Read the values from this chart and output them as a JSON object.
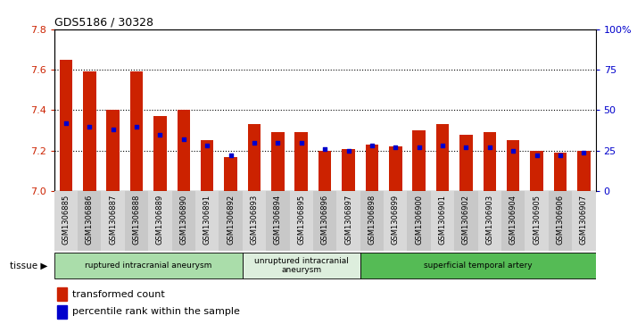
{
  "title": "GDS5186 / 30328",
  "samples": [
    "GSM1306885",
    "GSM1306886",
    "GSM1306887",
    "GSM1306888",
    "GSM1306889",
    "GSM1306890",
    "GSM1306891",
    "GSM1306892",
    "GSM1306893",
    "GSM1306894",
    "GSM1306895",
    "GSM1306896",
    "GSM1306897",
    "GSM1306898",
    "GSM1306899",
    "GSM1306900",
    "GSM1306901",
    "GSM1306902",
    "GSM1306903",
    "GSM1306904",
    "GSM1306905",
    "GSM1306906",
    "GSM1306907"
  ],
  "transformed_count": [
    7.65,
    7.59,
    7.4,
    7.59,
    7.37,
    7.4,
    7.25,
    7.17,
    7.33,
    7.29,
    7.29,
    7.2,
    7.21,
    7.23,
    7.22,
    7.3,
    7.33,
    7.28,
    7.29,
    7.25,
    7.2,
    7.19,
    7.2
  ],
  "percentile_rank": [
    42,
    40,
    38,
    40,
    35,
    32,
    28,
    22,
    30,
    30,
    30,
    26,
    25,
    28,
    27,
    27,
    28,
    27,
    27,
    25,
    22,
    22,
    24
  ],
  "ylim_left": [
    7.0,
    7.8
  ],
  "ylim_right": [
    0,
    100
  ],
  "yticks_left": [
    7.0,
    7.2,
    7.4,
    7.6,
    7.8
  ],
  "yticks_right": [
    0,
    25,
    50,
    75,
    100
  ],
  "ytick_labels_right": [
    "0",
    "25",
    "50",
    "75",
    "100%"
  ],
  "bar_color": "#cc2200",
  "dot_color": "#0000cc",
  "tissue_groups": [
    {
      "label": "ruptured intracranial aneurysm",
      "start": 0,
      "end": 8,
      "color": "#aaddaa"
    },
    {
      "label": "unruptured intracranial\naneurysm",
      "start": 8,
      "end": 13,
      "color": "#ddeedd"
    },
    {
      "label": "superficial temporal artery",
      "start": 13,
      "end": 23,
      "color": "#55bb55"
    }
  ],
  "legend_items": [
    {
      "label": "transformed count",
      "color": "#cc2200"
    },
    {
      "label": "percentile rank within the sample",
      "color": "#0000cc"
    }
  ],
  "tissue_label": "tissue"
}
